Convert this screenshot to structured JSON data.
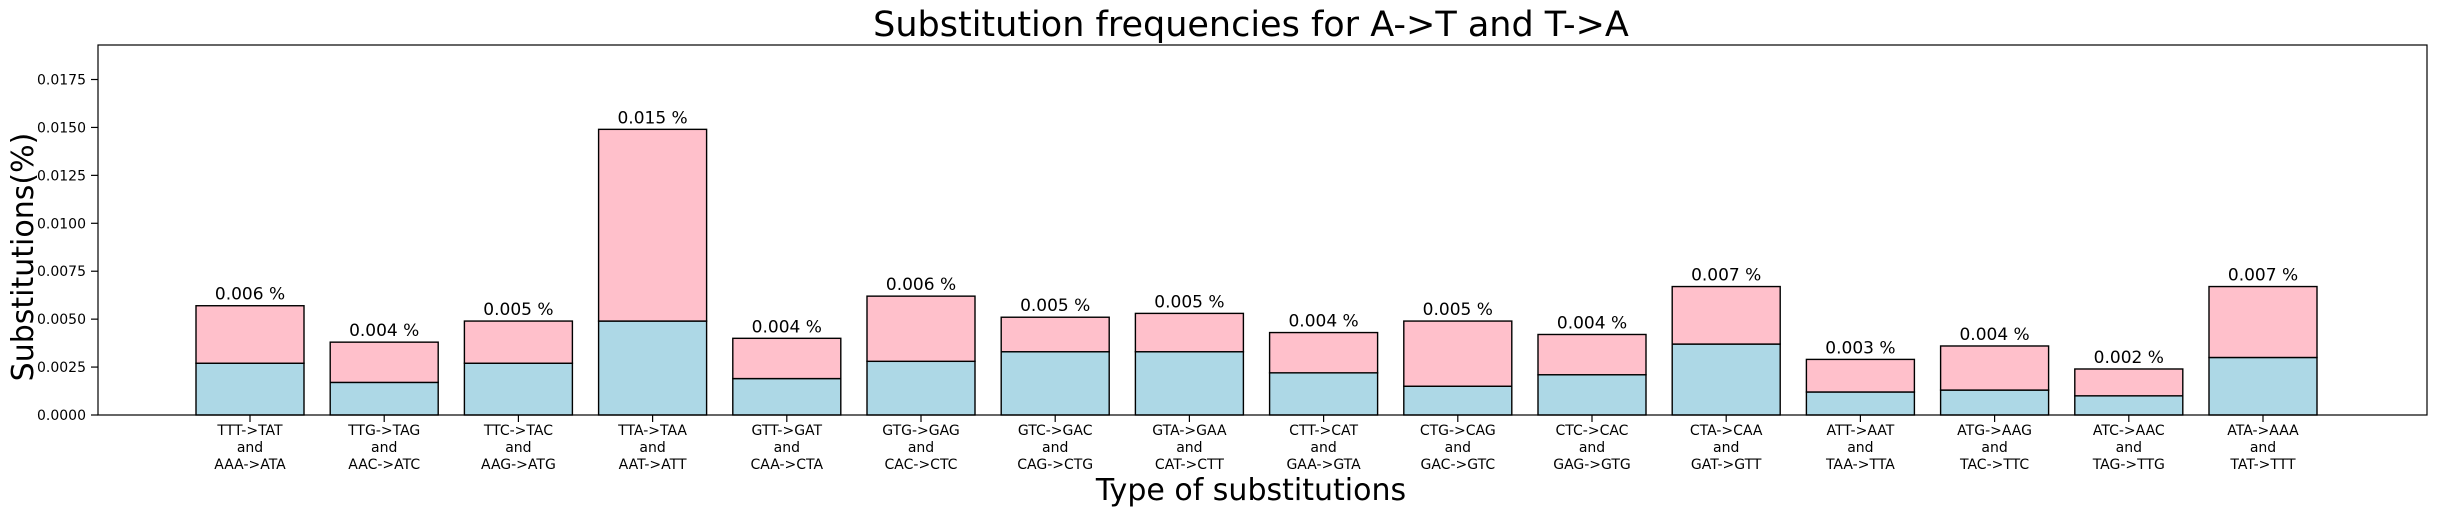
{
  "chart_data": {
    "type": "bar",
    "stacked": true,
    "title": "Substitution frequencies for A->T and T->A",
    "xlabel": "Type of substitutions",
    "ylabel": "Substitutions(%)",
    "ylim": [
      0,
      0.0193
    ],
    "yticks": [
      "0.0000",
      "0.0025",
      "0.0050",
      "0.0075",
      "0.0100",
      "0.0125",
      "0.0150",
      "0.0175"
    ],
    "grid": false,
    "categories": [
      [
        "TTT->TAT",
        "and",
        "AAA->ATA"
      ],
      [
        "TTG->TAG",
        "and",
        "AAC->ATC"
      ],
      [
        "TTC->TAC",
        "and",
        "AAG->ATG"
      ],
      [
        "TTA->TAA",
        "and",
        "AAT->ATT"
      ],
      [
        "GTT->GAT",
        "and",
        "CAA->CTA"
      ],
      [
        "GTG->GAG",
        "and",
        "CAC->CTC"
      ],
      [
        "GTC->GAC",
        "and",
        "CAG->CTG"
      ],
      [
        "GTA->GAA",
        "and",
        "CAT->CTT"
      ],
      [
        "CTT->CAT",
        "and",
        "GAA->GTA"
      ],
      [
        "CTG->CAG",
        "and",
        "GAC->GTC"
      ],
      [
        "CTC->CAC",
        "and",
        "GAG->GTG"
      ],
      [
        "CTA->CAA",
        "and",
        "GAT->GTT"
      ],
      [
        "ATT->AAT",
        "and",
        "TAA->TTA"
      ],
      [
        "ATG->AAG",
        "and",
        "TAC->TTC"
      ],
      [
        "ATC->AAC",
        "and",
        "TAG->TTG"
      ],
      [
        "ATA->AAA",
        "and",
        "TAT->TTT"
      ]
    ],
    "series": [
      {
        "color": "#add8e6",
        "values": [
          0.0027,
          0.0017,
          0.0027,
          0.0049,
          0.0019,
          0.0028,
          0.0033,
          0.0033,
          0.0022,
          0.0015,
          0.0021,
          0.0037,
          0.0012,
          0.0013,
          0.001,
          0.003
        ]
      },
      {
        "color": "#ffc0cb",
        "values": [
          0.003,
          0.0021,
          0.0022,
          0.01,
          0.0021,
          0.0034,
          0.0018,
          0.002,
          0.0021,
          0.0034,
          0.0021,
          0.003,
          0.0017,
          0.0023,
          0.0014,
          0.0037
        ]
      }
    ],
    "bar_labels": [
      "0.006 %",
      "0.004 %",
      "0.005 %",
      "0.015 %",
      "0.004 %",
      "0.006 %",
      "0.005 %",
      "0.005 %",
      "0.004 %",
      "0.005 %",
      "0.004 %",
      "0.007 %",
      "0.003 %",
      "0.004 %",
      "0.002 %",
      "0.007 %"
    ]
  }
}
